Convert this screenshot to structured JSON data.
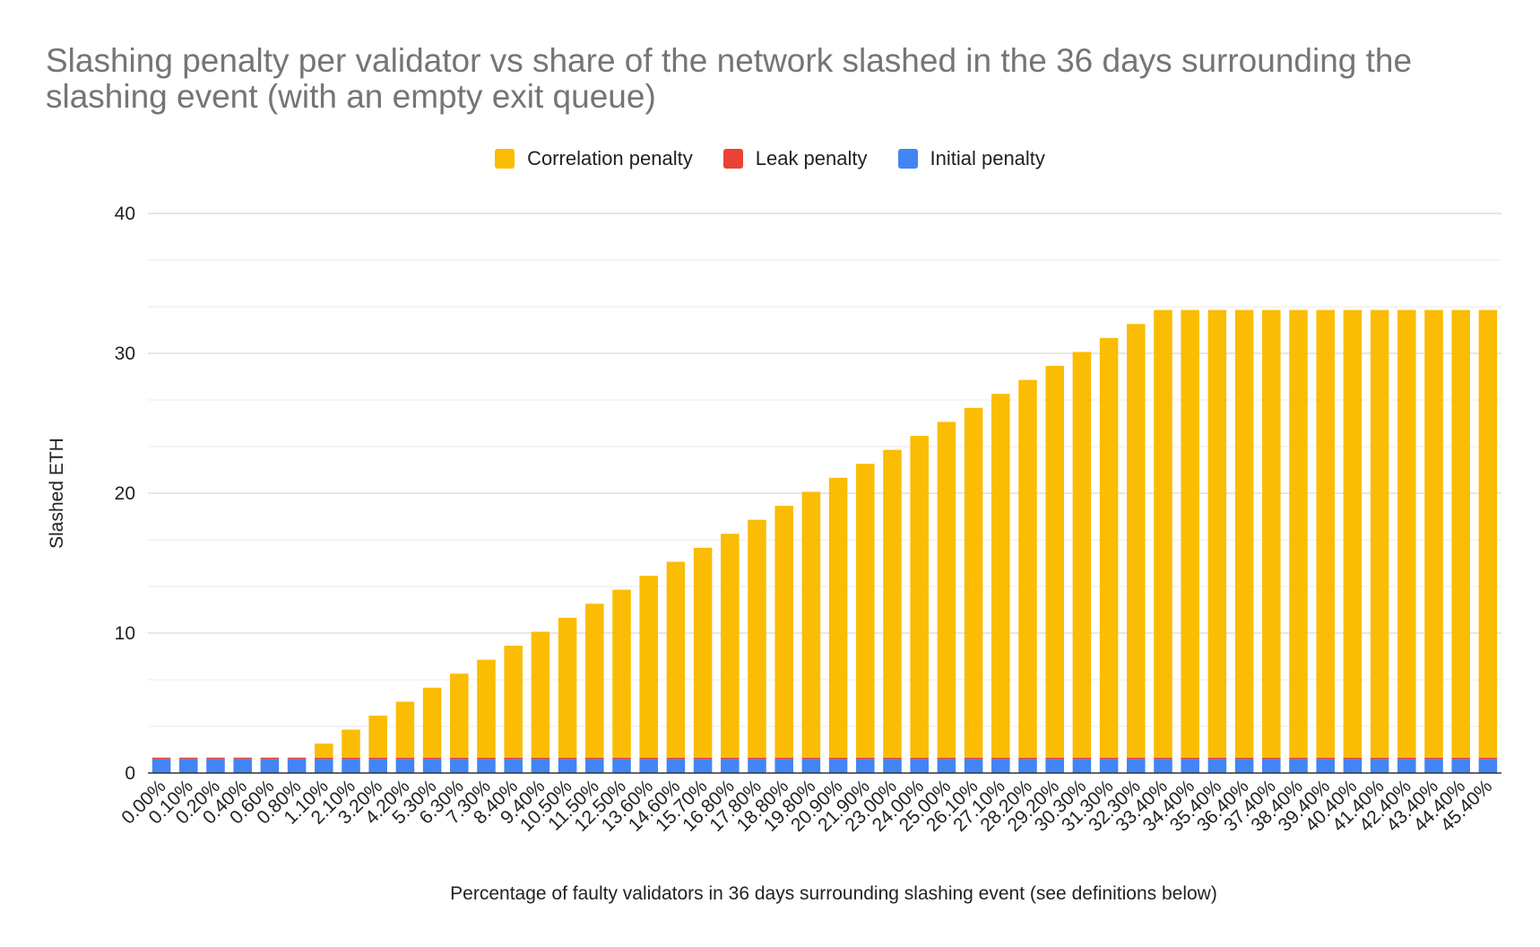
{
  "chart_data": {
    "type": "bar",
    "stacked": true,
    "title": "Slashing penalty per validator vs share of the network slashed in the 36 days surrounding the slashing event (with an empty exit queue)",
    "xlabel": "Percentage of faulty validators in 36 days surrounding slashing event (see definitions below)",
    "ylabel": "Slashed ETH",
    "ylim": [
      0,
      40
    ],
    "y_ticks": [
      "0",
      "10",
      "20",
      "30",
      "40"
    ],
    "legend_position": "top",
    "grid": true,
    "categories": [
      "0.00%",
      "0.10%",
      "0.20%",
      "0.40%",
      "0.60%",
      "0.80%",
      "1.10%",
      "2.10%",
      "3.20%",
      "4.20%",
      "5.30%",
      "6.30%",
      "7.30%",
      "8.40%",
      "9.40%",
      "10.50%",
      "11.50%",
      "12.50%",
      "13.60%",
      "14.60%",
      "15.70%",
      "16.80%",
      "17.80%",
      "18.80%",
      "19.80%",
      "20.90%",
      "21.90%",
      "23.00%",
      "24.00%",
      "25.00%",
      "26.10%",
      "27.10%",
      "28.20%",
      "29.20%",
      "30.30%",
      "31.30%",
      "32.30%",
      "33.40%",
      "34.40%",
      "35.40%",
      "36.40%",
      "37.40%",
      "38.40%",
      "39.40%",
      "40.40%",
      "41.40%",
      "42.40%",
      "43.40%",
      "44.40%",
      "45.40%"
    ],
    "series": [
      {
        "name": "Initial penalty",
        "color": "#4285F4",
        "values": [
          1,
          1,
          1,
          1,
          1,
          1,
          1,
          1,
          1,
          1,
          1,
          1,
          1,
          1,
          1,
          1,
          1,
          1,
          1,
          1,
          1,
          1,
          1,
          1,
          1,
          1,
          1,
          1,
          1,
          1,
          1,
          1,
          1,
          1,
          1,
          1,
          1,
          1,
          1,
          1,
          1,
          1,
          1,
          1,
          1,
          1,
          1,
          1,
          1,
          1
        ]
      },
      {
        "name": "Leak penalty",
        "color": "#EA4335",
        "values": [
          0.1,
          0.1,
          0.1,
          0.1,
          0.1,
          0.1,
          0.1,
          0.1,
          0.1,
          0.1,
          0.1,
          0.1,
          0.1,
          0.1,
          0.1,
          0.1,
          0.1,
          0.1,
          0.1,
          0.1,
          0.1,
          0.1,
          0.1,
          0.1,
          0.1,
          0.1,
          0.1,
          0.1,
          0.1,
          0.1,
          0.1,
          0.1,
          0.1,
          0.1,
          0.1,
          0.1,
          0.1,
          0.1,
          0.1,
          0.1,
          0.1,
          0.1,
          0.1,
          0.1,
          0.1,
          0.1,
          0.1,
          0.1,
          0.1,
          0.1
        ]
      },
      {
        "name": "Correlation penalty",
        "color": "#FBBC04",
        "values": [
          0,
          0,
          0,
          0,
          0,
          0,
          1,
          2,
          3,
          4,
          5,
          6,
          7,
          8,
          9,
          10,
          11,
          12,
          13,
          14,
          15,
          16,
          17,
          18,
          19,
          20,
          21,
          22,
          23,
          24,
          25,
          26,
          27,
          28,
          29,
          30,
          31,
          32,
          32,
          32,
          32,
          32,
          32,
          32,
          32,
          32,
          32,
          32,
          32,
          32
        ]
      }
    ],
    "legend_order": [
      "Correlation penalty",
      "Leak penalty",
      "Initial penalty"
    ]
  }
}
